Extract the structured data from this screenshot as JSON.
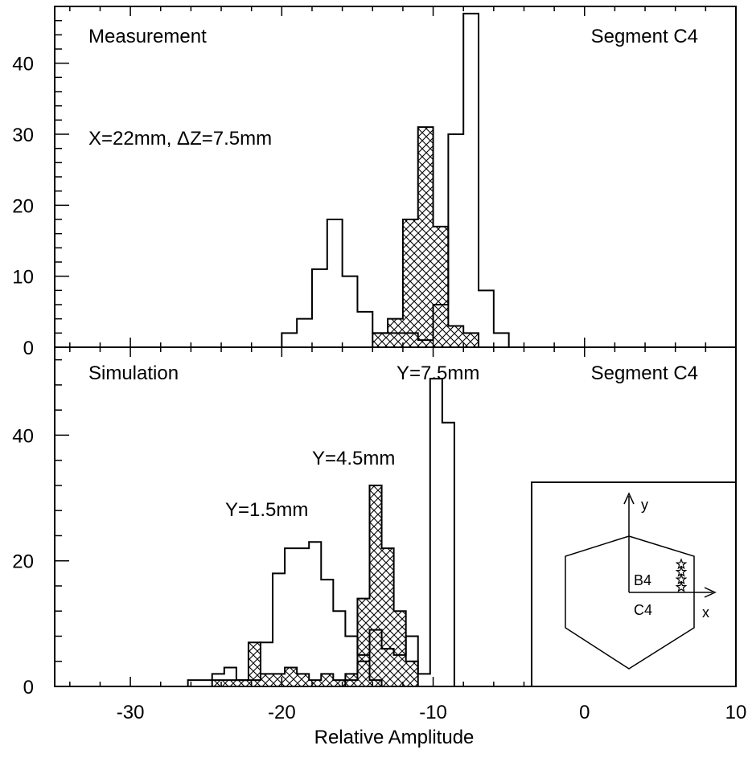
{
  "figure": {
    "xlabel": "Relative Amplitude"
  },
  "chart_data": [
    {
      "type": "histogram",
      "panel": "top",
      "title_left": "Measurement",
      "title_right": "Segment C4",
      "annotation": "X=22mm, ΔZ=7.5mm",
      "xlim": [
        -35,
        10
      ],
      "ylim": [
        0,
        48
      ],
      "bin_width": 1,
      "x_ticks": [
        -30,
        -20,
        -10,
        0,
        10
      ],
      "y_ticks": [
        0,
        10,
        20,
        30,
        40
      ],
      "series": [
        {
          "style": "outline",
          "bins": [
            {
              "x0": -20.0,
              "count": 2
            },
            {
              "x0": -19.0,
              "count": 4
            },
            {
              "x0": -18.0,
              "count": 11
            },
            {
              "x0": -17.0,
              "count": 18
            },
            {
              "x0": -16.0,
              "count": 10
            },
            {
              "x0": -15.0,
              "count": 5
            },
            {
              "x0": -14.0,
              "count": 2
            },
            {
              "x0": -13.0,
              "count": 2
            },
            {
              "x0": -12.0,
              "count": 2
            },
            {
              "x0": -11.0,
              "count": 1
            },
            {
              "x0": -10.0,
              "count": 6
            },
            {
              "x0": -9.0,
              "count": 30
            },
            {
              "x0": -8.0,
              "count": 47
            },
            {
              "x0": -7.0,
              "count": 8
            },
            {
              "x0": -6.0,
              "count": 2
            }
          ]
        },
        {
          "style": "hatched",
          "bins": [
            {
              "x0": -14.0,
              "count": 2
            },
            {
              "x0": -13.0,
              "count": 4
            },
            {
              "x0": -12.0,
              "count": 18
            },
            {
              "x0": -11.0,
              "count": 31
            },
            {
              "x0": -10.0,
              "count": 17
            },
            {
              "x0": -9.0,
              "count": 3
            },
            {
              "x0": -8.0,
              "count": 2
            }
          ]
        }
      ]
    },
    {
      "type": "histogram",
      "panel": "bottom",
      "title_left": "Simulation",
      "title_right": "Segment C4",
      "xlim": [
        -35,
        10
      ],
      "ylim": [
        0,
        54
      ],
      "bin_width": 0.8,
      "x_ticks": [
        -30,
        -20,
        -10,
        0,
        10
      ],
      "y_ticks": [
        0,
        20,
        40
      ],
      "labels": [
        {
          "text": "Y=1.5mm",
          "x": -18.5,
          "y": 30
        },
        {
          "text": "Y=4.5mm",
          "x": -13.0,
          "y": 38
        },
        {
          "text": "Y=7.5mm",
          "x": -10.5,
          "y": 51
        }
      ],
      "series": [
        {
          "name": "Y=1.5mm",
          "style": "outline",
          "bins": [
            {
              "x0": -26.2,
              "count": 1
            },
            {
              "x0": -25.4,
              "count": 1
            },
            {
              "x0": -24.6,
              "count": 2
            },
            {
              "x0": -23.8,
              "count": 3
            },
            {
              "x0": -23.0,
              "count": 1
            },
            {
              "x0": -22.2,
              "count": 1
            },
            {
              "x0": -21.4,
              "count": 7
            },
            {
              "x0": -20.6,
              "count": 18
            },
            {
              "x0": -19.8,
              "count": 22
            },
            {
              "x0": -19.0,
              "count": 22
            },
            {
              "x0": -18.2,
              "count": 23
            },
            {
              "x0": -17.4,
              "count": 17
            },
            {
              "x0": -16.6,
              "count": 12
            },
            {
              "x0": -15.8,
              "count": 8
            },
            {
              "x0": -15.0,
              "count": 5
            },
            {
              "x0": -14.2,
              "count": 1
            }
          ]
        },
        {
          "name": "Y=4.5mm",
          "style": "hatched",
          "bins": [
            {
              "x0": -24.6,
              "count": 1
            },
            {
              "x0": -23.8,
              "count": 1
            },
            {
              "x0": -23.0,
              "count": 1
            },
            {
              "x0": -22.2,
              "count": 7
            },
            {
              "x0": -21.4,
              "count": 2
            },
            {
              "x0": -20.6,
              "count": 2
            },
            {
              "x0": -19.8,
              "count": 3
            },
            {
              "x0": -19.0,
              "count": 2
            },
            {
              "x0": -18.2,
              "count": 1
            },
            {
              "x0": -17.4,
              "count": 2
            },
            {
              "x0": -16.6,
              "count": 1
            },
            {
              "x0": -15.8,
              "count": 2
            },
            {
              "x0": -15.0,
              "count": 14
            },
            {
              "x0": -14.2,
              "count": 32
            },
            {
              "x0": -13.4,
              "count": 22
            },
            {
              "x0": -12.6,
              "count": 12
            },
            {
              "x0": -11.8,
              "count": 4
            }
          ]
        },
        {
          "name": "Y=7.5mm",
          "style": "outline",
          "bins": [
            {
              "x0": -15.8,
              "count": 1
            },
            {
              "x0": -15.0,
              "count": 4
            },
            {
              "x0": -14.2,
              "count": 9
            },
            {
              "x0": -13.4,
              "count": 6
            },
            {
              "x0": -12.6,
              "count": 5
            },
            {
              "x0": -11.8,
              "count": 8
            },
            {
              "x0": -11.0,
              "count": 2
            },
            {
              "x0": -10.2,
              "count": 49
            },
            {
              "x0": -9.4,
              "count": 42
            }
          ]
        }
      ],
      "inset": {
        "label_y_axis": "y",
        "label_x_axis": "x",
        "label_upper_segment": "B4",
        "label_lower_segment": "C4",
        "star_count": 4
      }
    }
  ]
}
